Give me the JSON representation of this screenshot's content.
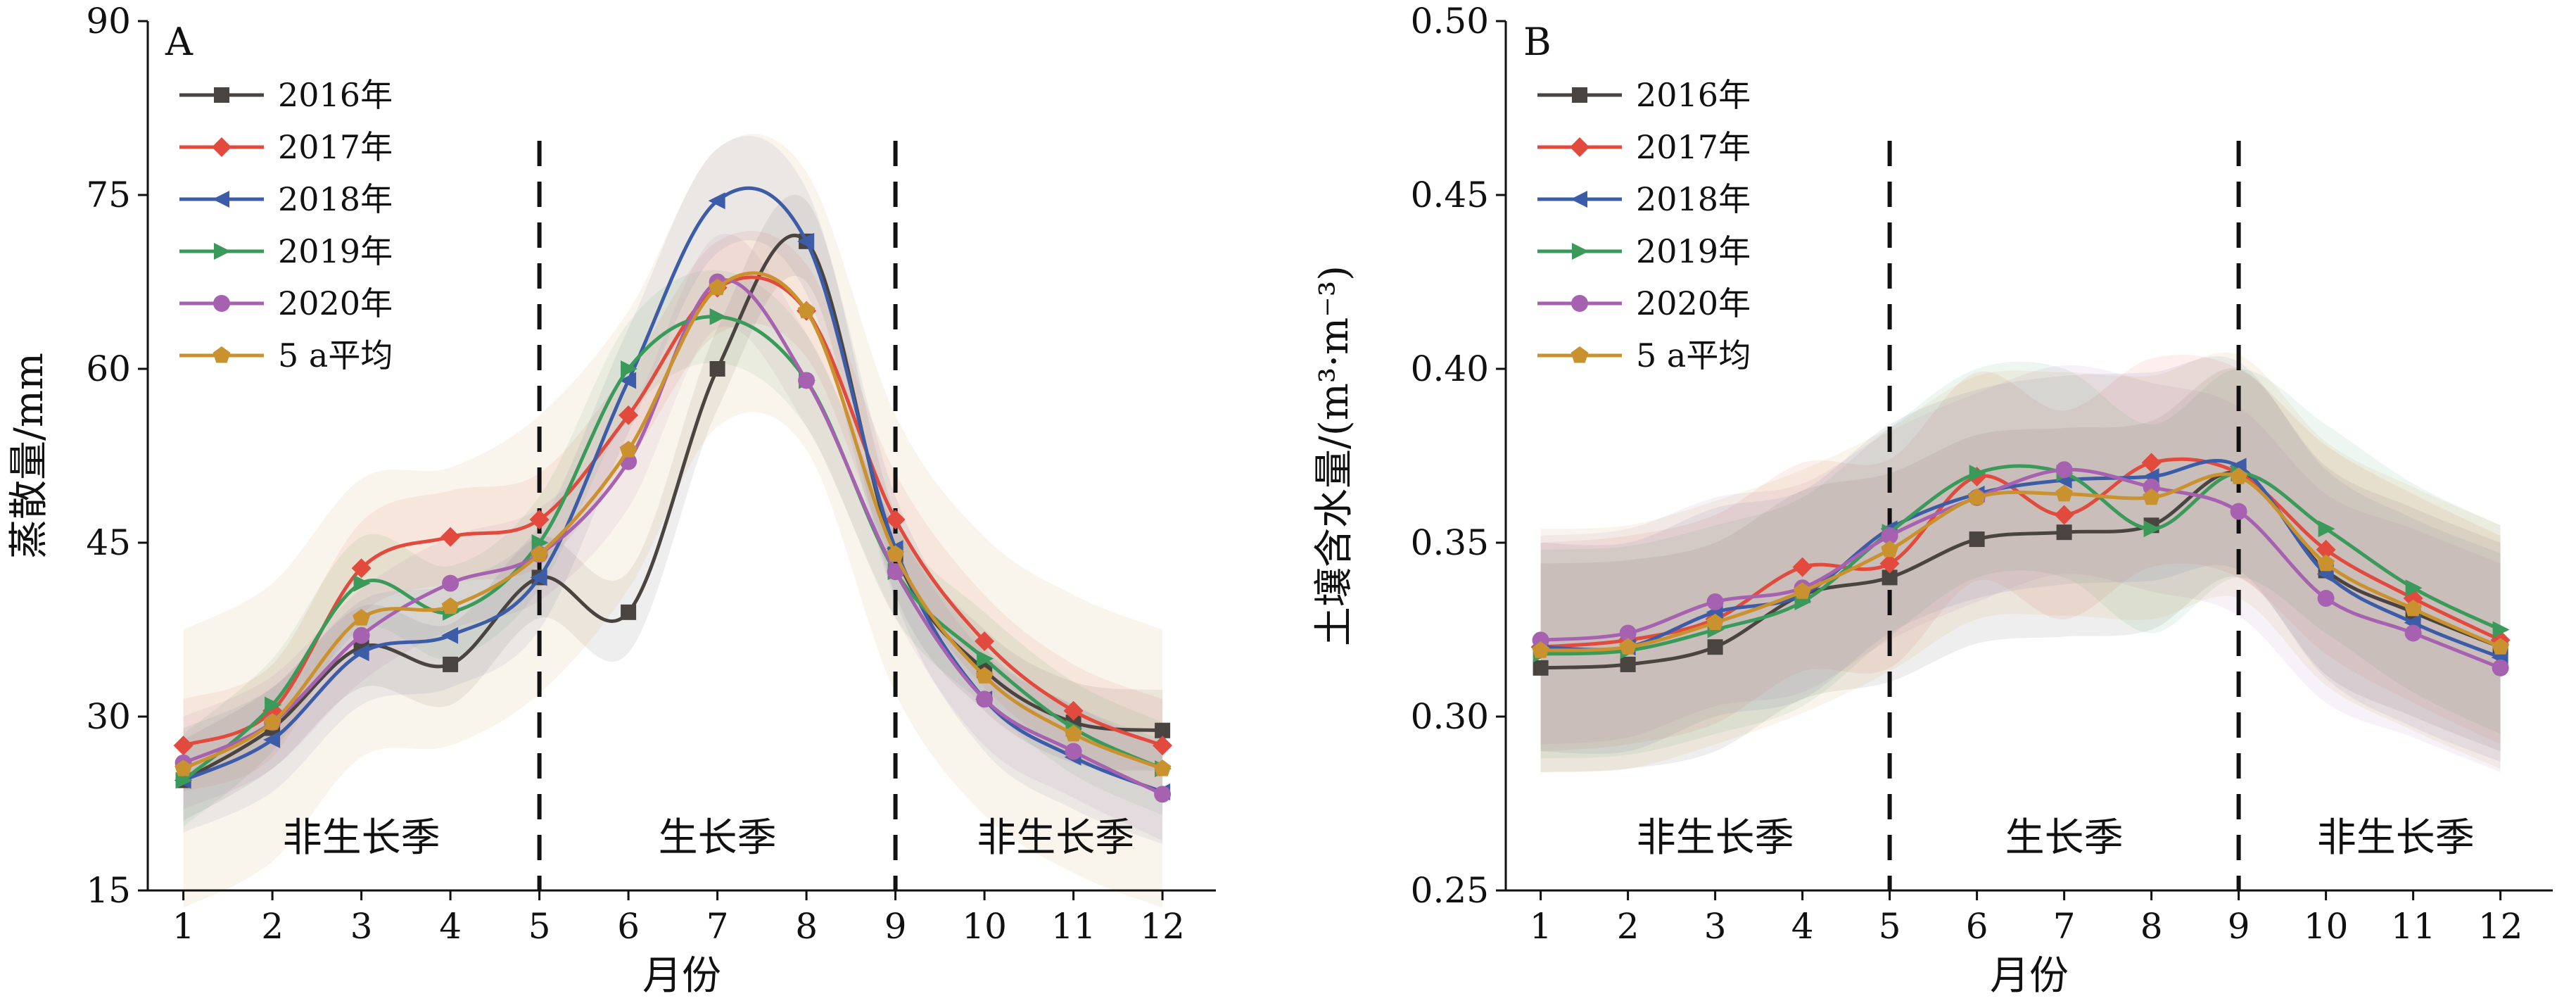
{
  "chart_data": [
    {
      "type": "line",
      "panel_label": "A",
      "xlabel": "月份",
      "ylabel": "蒸散量/mm",
      "ylim": [
        15,
        90
      ],
      "xlim": [
        0.6,
        12.6
      ],
      "yticks": [
        15,
        30,
        45,
        60,
        75,
        90
      ],
      "x": [
        1,
        2,
        3,
        4,
        5,
        6,
        7,
        8,
        9,
        10,
        11,
        12
      ],
      "dividers": [
        5,
        9
      ],
      "regions": [
        {
          "label": "非生长季",
          "x": 3,
          "y": 19.5
        },
        {
          "label": "生长季",
          "x": 7,
          "y": 19.5
        },
        {
          "label": "非生长季",
          "x": 10.8,
          "y": 19.5
        }
      ],
      "legend_position": "top-left",
      "series": [
        {
          "name": "2016年",
          "color": "#4a4440",
          "marker": "square",
          "values": [
            24.5,
            29.0,
            36.0,
            34.5,
            42.0,
            39.0,
            60.0,
            71.0,
            44.0,
            34.0,
            29.5,
            28.8
          ],
          "band": 3.5
        },
        {
          "name": "2017年",
          "color": "#e14a3c",
          "marker": "diamond",
          "values": [
            27.5,
            30.5,
            42.8,
            45.5,
            47.0,
            56.0,
            67.0,
            65.0,
            47.0,
            36.5,
            30.5,
            27.5
          ],
          "band": 4.0
        },
        {
          "name": "2018年",
          "color": "#3d5ca8",
          "marker": "triangle-left",
          "values": [
            24.5,
            28.0,
            35.5,
            37.0,
            42.0,
            59.0,
            74.5,
            71.0,
            44.5,
            31.5,
            26.5,
            23.5
          ],
          "band": 4.5
        },
        {
          "name": "2019年",
          "color": "#3a9a5a",
          "marker": "triangle-right",
          "values": [
            24.5,
            31.0,
            41.5,
            39.0,
            45.0,
            60.0,
            64.5,
            59.0,
            42.5,
            35.0,
            29.0,
            25.5
          ],
          "band": 4.0
        },
        {
          "name": "2020年",
          "color": "#a662b0",
          "marker": "circle",
          "values": [
            26.0,
            29.5,
            37.0,
            41.5,
            44.0,
            52.0,
            67.5,
            59.0,
            42.5,
            31.5,
            27.0,
            23.3
          ],
          "band": 4.0
        },
        {
          "name": "5 a平均",
          "color": "#c9922e",
          "marker": "pentagon",
          "values": [
            25.5,
            29.5,
            38.5,
            39.5,
            44.0,
            53.0,
            67.0,
            65.0,
            44.0,
            33.5,
            28.5,
            25.5
          ],
          "band": 12.0
        }
      ]
    },
    {
      "type": "line",
      "panel_label": "B",
      "xlabel": "月份",
      "ylabel": "土壤含水量/(m³·m⁻³)",
      "ylim": [
        0.25,
        0.5
      ],
      "xlim": [
        0.6,
        12.6
      ],
      "yticks": [
        0.25,
        0.3,
        0.35,
        0.4,
        0.45,
        0.5
      ],
      "x": [
        1,
        2,
        3,
        4,
        5,
        6,
        7,
        8,
        9,
        10,
        11,
        12
      ],
      "dividers": [
        5,
        9
      ],
      "regions": [
        {
          "label": "非生长季",
          "x": 3,
          "y": 0.265
        },
        {
          "label": "生长季",
          "x": 7,
          "y": 0.265
        },
        {
          "label": "非生长季",
          "x": 10.8,
          "y": 0.265
        }
      ],
      "legend_position": "top-left",
      "series": [
        {
          "name": "2016年",
          "color": "#4a4440",
          "marker": "square",
          "values": [
            0.314,
            0.315,
            0.32,
            0.335,
            0.34,
            0.351,
            0.353,
            0.355,
            0.37,
            0.342,
            0.33,
            0.32
          ],
          "band": 0.03
        },
        {
          "name": "2017年",
          "color": "#e14a3c",
          "marker": "diamond",
          "values": [
            0.32,
            0.322,
            0.328,
            0.343,
            0.344,
            0.369,
            0.358,
            0.373,
            0.37,
            0.348,
            0.334,
            0.322
          ],
          "band": 0.03
        },
        {
          "name": "2018年",
          "color": "#3d5ca8",
          "marker": "triangle-left",
          "values": [
            0.32,
            0.32,
            0.33,
            0.335,
            0.354,
            0.364,
            0.368,
            0.369,
            0.372,
            0.341,
            0.327,
            0.317
          ],
          "band": 0.03
        },
        {
          "name": "2019年",
          "color": "#3a9a5a",
          "marker": "triangle-right",
          "values": [
            0.318,
            0.319,
            0.325,
            0.333,
            0.353,
            0.37,
            0.37,
            0.354,
            0.37,
            0.354,
            0.337,
            0.325
          ],
          "band": 0.03
        },
        {
          "name": "2020年",
          "color": "#a662b0",
          "marker": "circle",
          "values": [
            0.322,
            0.324,
            0.333,
            0.337,
            0.352,
            0.363,
            0.371,
            0.366,
            0.359,
            0.334,
            0.324,
            0.314
          ],
          "band": 0.03
        },
        {
          "name": "5 a平均",
          "color": "#c9922e",
          "marker": "pentagon",
          "values": [
            0.319,
            0.32,
            0.327,
            0.336,
            0.348,
            0.363,
            0.364,
            0.363,
            0.369,
            0.344,
            0.331,
            0.32
          ],
          "band": 0.035
        }
      ]
    }
  ]
}
